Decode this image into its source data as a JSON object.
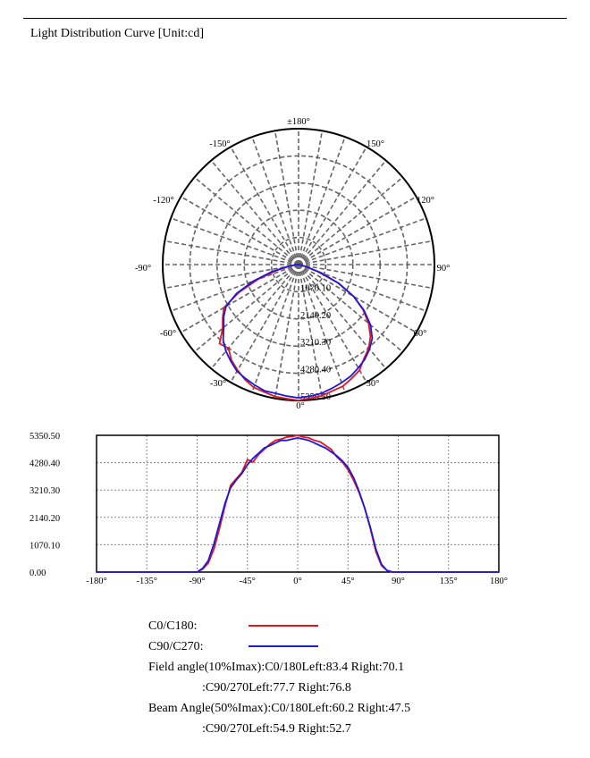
{
  "page": {
    "title": "Light Distribution Curve [Unit:cd]"
  },
  "chart_data": [
    {
      "type": "polar",
      "angle_labels": [
        {
          "text": "±180°"
        },
        {
          "text": "150°"
        },
        {
          "text": "120°"
        },
        {
          "text": "90°"
        },
        {
          "text": "60°"
        },
        {
          "text": "30°"
        },
        {
          "text": "0°"
        },
        {
          "text": "-30°"
        },
        {
          "text": "-60°"
        },
        {
          "text": "-90°"
        },
        {
          "text": "-120°"
        },
        {
          "text": "-150°"
        }
      ],
      "radial_ticks": [
        "1070.10",
        "2140.20",
        "3210.30",
        "4280.40",
        "5350.50"
      ],
      "rmax": 5350.5,
      "series": [
        {
          "name": "C0/C180",
          "color": "#e8141c",
          "angles": [
            -90,
            -85,
            -80,
            -75,
            -70,
            -65,
            -60,
            -55,
            -50,
            -45,
            -40,
            -35,
            -30,
            -25,
            -20,
            -15,
            -10,
            -5,
            0,
            5,
            10,
            15,
            20,
            25,
            30,
            35,
            40,
            45,
            50,
            55,
            60,
            65,
            70,
            75,
            80,
            85,
            90
          ],
          "values": [
            0,
            120,
            350,
            900,
            1700,
            2600,
            3400,
            3650,
            3900,
            4400,
            4300,
            4600,
            4800,
            5000,
            5150,
            5200,
            5280,
            5300,
            5350,
            5280,
            5250,
            5150,
            5100,
            4950,
            4800,
            4500,
            4300,
            4000,
            3600,
            3100,
            2500,
            1700,
            800,
            250,
            60,
            0,
            0
          ]
        },
        {
          "name": "C90/C270",
          "color": "#1a1adf",
          "angles": [
            -90,
            -85,
            -80,
            -75,
            -70,
            -65,
            -60,
            -55,
            -50,
            -45,
            -40,
            -35,
            -30,
            -25,
            -20,
            -15,
            -10,
            -5,
            0,
            5,
            10,
            15,
            20,
            25,
            30,
            35,
            40,
            45,
            50,
            55,
            60,
            65,
            70,
            75,
            80,
            85,
            90
          ],
          "values": [
            0,
            150,
            450,
            1100,
            1900,
            2700,
            3300,
            3600,
            3850,
            4200,
            4450,
            4650,
            4850,
            4950,
            5050,
            5150,
            5150,
            5200,
            5250,
            5200,
            5150,
            5050,
            4950,
            4850,
            4700,
            4550,
            4350,
            4100,
            3700,
            3150,
            2500,
            1750,
            900,
            300,
            60,
            0,
            0
          ]
        }
      ]
    },
    {
      "type": "line",
      "x_ticks": [
        "-180°",
        "-135°",
        "-90°",
        "-45°",
        "0°",
        "45°",
        "90°",
        "135°",
        "180°"
      ],
      "y_ticks": [
        "0.00",
        "1070.10",
        "2140.20",
        "3210.30",
        "4280.40",
        "5350.50"
      ],
      "xlim": [
        -180,
        180
      ],
      "ylim": [
        0,
        5350.5
      ],
      "grid": true,
      "series": [
        {
          "name": "C0/C180",
          "color": "#e8141c",
          "x": [
            -180,
            -100,
            -90,
            -85,
            -80,
            -75,
            -70,
            -65,
            -60,
            -55,
            -50,
            -45,
            -40,
            -35,
            -30,
            -25,
            -20,
            -15,
            -10,
            -5,
            0,
            5,
            10,
            15,
            20,
            25,
            30,
            35,
            40,
            45,
            50,
            55,
            60,
            65,
            70,
            75,
            80,
            85,
            90,
            100,
            180
          ],
          "y": [
            0,
            0,
            0,
            120,
            350,
            900,
            1700,
            2600,
            3400,
            3650,
            3900,
            4400,
            4300,
            4600,
            4800,
            5000,
            5150,
            5200,
            5280,
            5300,
            5350,
            5280,
            5250,
            5150,
            5100,
            4950,
            4800,
            4500,
            4300,
            4000,
            3600,
            3100,
            2500,
            1700,
            800,
            250,
            60,
            0,
            0,
            0,
            0
          ]
        },
        {
          "name": "C90/C270",
          "color": "#1a1adf",
          "x": [
            -180,
            -100,
            -90,
            -85,
            -80,
            -75,
            -70,
            -65,
            -60,
            -55,
            -50,
            -45,
            -40,
            -35,
            -30,
            -25,
            -20,
            -15,
            -10,
            -5,
            0,
            5,
            10,
            15,
            20,
            25,
            30,
            35,
            40,
            45,
            50,
            55,
            60,
            65,
            70,
            75,
            80,
            85,
            90,
            100,
            180
          ],
          "y": [
            0,
            0,
            0,
            150,
            450,
            1100,
            1900,
            2700,
            3300,
            3600,
            3850,
            4200,
            4450,
            4650,
            4850,
            4950,
            5050,
            5150,
            5150,
            5200,
            5250,
            5200,
            5150,
            5050,
            4950,
            4850,
            4700,
            4550,
            4350,
            4100,
            3700,
            3150,
            2500,
            1750,
            900,
            300,
            60,
            0,
            0,
            0,
            0
          ]
        }
      ]
    }
  ],
  "legend": {
    "c0_label": "C0/C180:",
    "c90_label": "C90/C270:",
    "c0_color": "#e8141c",
    "c90_color": "#1a1adf"
  },
  "info": {
    "field_angle_line1": "Field angle(10%Imax):C0/180Left:83.4 Right:70.1",
    "field_angle_line2": ":C90/270Left:77.7 Right:76.8",
    "beam_angle_line1": "Beam Angle(50%Imax):C0/180Left:60.2 Right:47.5",
    "beam_angle_line2": ":C90/270Left:54.9 Right:52.7"
  }
}
